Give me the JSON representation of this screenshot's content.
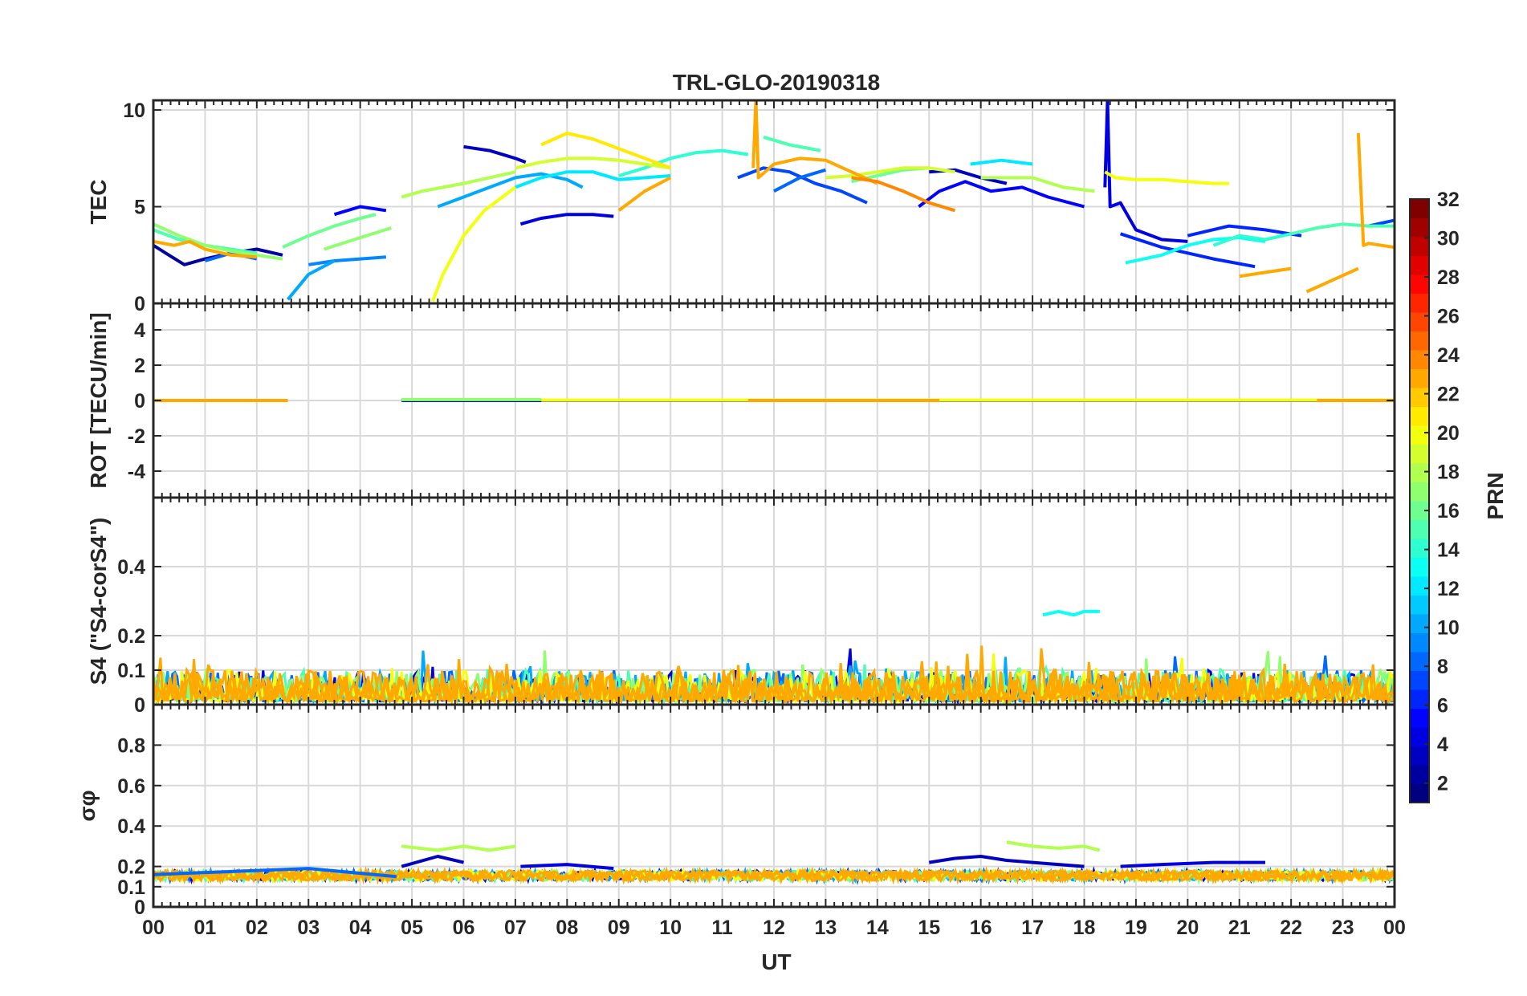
{
  "figure": {
    "title": "TRL-GLO-20190318",
    "xlabel": "UT",
    "colorbar_label": "PRN"
  },
  "chart_data": [
    {
      "type": "line",
      "panel": "tec",
      "ylabel": "TEC",
      "ylim": [
        0,
        10.5
      ],
      "yticks": [
        "0",
        "5",
        "10"
      ],
      "ytick_values": [
        0,
        5,
        10
      ],
      "xlim": [
        0,
        24
      ],
      "xticks": [
        "00",
        "01",
        "02",
        "03",
        "04",
        "05",
        "06",
        "07",
        "08",
        "09",
        "10",
        "11",
        "12",
        "13",
        "14",
        "15",
        "16",
        "17",
        "18",
        "19",
        "20",
        "21",
        "22",
        "23",
        "00"
      ],
      "grid": true,
      "series": [
        {
          "prn": 2,
          "x": [
            0.0,
            0.3,
            0.6,
            1.0,
            1.5,
            2.0,
            2.5
          ],
          "y": [
            3.0,
            2.5,
            2.0,
            2.3,
            2.6,
            2.8,
            2.5
          ]
        },
        {
          "prn": 3,
          "x": [
            6.0,
            6.5,
            7.0,
            7.2
          ],
          "y": [
            8.1,
            7.9,
            7.5,
            7.3
          ]
        },
        {
          "prn": 3,
          "x": [
            15.0,
            15.5,
            16.0,
            16.5
          ],
          "y": [
            6.8,
            6.9,
            6.5,
            6.2
          ]
        },
        {
          "prn": 4,
          "x": [
            7.1,
            7.5,
            8.0,
            8.5,
            8.9
          ],
          "y": [
            4.1,
            4.4,
            4.6,
            4.6,
            4.5
          ]
        },
        {
          "prn": 4,
          "x": [
            18.4,
            18.45,
            18.5,
            18.7,
            19.0,
            19.5,
            20.0
          ],
          "y": [
            6.0,
            10.5,
            5.0,
            5.2,
            3.8,
            3.3,
            3.2
          ]
        },
        {
          "prn": 5,
          "x": [
            3.5,
            4.0,
            4.5
          ],
          "y": [
            4.6,
            5.0,
            4.8
          ]
        },
        {
          "prn": 5,
          "x": [
            14.8,
            15.2,
            15.7,
            16.2,
            16.8,
            17.3,
            18.0
          ],
          "y": [
            5.0,
            5.8,
            6.3,
            5.8,
            6.0,
            5.5,
            5.0
          ]
        },
        {
          "prn": 6,
          "x": [
            18.7,
            19.5,
            20.5,
            21.3
          ],
          "y": [
            3.6,
            2.9,
            2.3,
            1.9
          ]
        },
        {
          "prn": 6,
          "x": [
            20.0,
            20.8,
            21.5,
            22.2
          ],
          "y": [
            3.5,
            4.0,
            3.8,
            3.5
          ]
        },
        {
          "prn": 7,
          "x": [
            11.3,
            11.8,
            12.3,
            12.8,
            13.3,
            13.8
          ],
          "y": [
            6.5,
            7.0,
            6.8,
            6.2,
            5.8,
            5.2
          ]
        },
        {
          "prn": 7,
          "x": [
            23.5,
            24.0
          ],
          "y": [
            4.0,
            4.3
          ]
        },
        {
          "prn": 8,
          "x": [
            1.0,
            1.5,
            2.0
          ],
          "y": [
            2.2,
            2.6,
            2.3
          ]
        },
        {
          "prn": 8,
          "x": [
            12.0,
            12.5,
            13.0
          ],
          "y": [
            5.8,
            6.5,
            6.9
          ]
        },
        {
          "prn": 9,
          "x": [
            3.0,
            3.5,
            4.0,
            4.5
          ],
          "y": [
            2.0,
            2.2,
            2.3,
            2.4
          ]
        },
        {
          "prn": 10,
          "x": [
            2.6,
            3.0,
            3.5
          ],
          "y": [
            0.2,
            1.5,
            2.2
          ]
        },
        {
          "prn": 10,
          "x": [
            5.5,
            6.0,
            6.5,
            7.0,
            7.5,
            8.0,
            8.3
          ],
          "y": [
            5.0,
            5.5,
            6.0,
            6.5,
            6.7,
            6.4,
            6.0
          ]
        },
        {
          "prn": 12,
          "x": [
            7.0,
            7.5,
            8.0,
            8.5,
            9.0,
            9.5,
            10.0
          ],
          "y": [
            6.0,
            6.5,
            6.8,
            6.8,
            6.4,
            6.5,
            6.6
          ]
        },
        {
          "prn": 12,
          "x": [
            15.8,
            16.4,
            17.0
          ],
          "y": [
            7.2,
            7.4,
            7.2
          ]
        },
        {
          "prn": 13,
          "x": [
            18.8,
            19.5,
            20.0,
            20.5,
            21.0,
            21.5
          ],
          "y": [
            2.1,
            2.5,
            3.0,
            3.3,
            3.4,
            3.2
          ]
        },
        {
          "prn": 14,
          "x": [
            9.0,
            9.5,
            10.0,
            10.5,
            11.0,
            11.5
          ],
          "y": [
            6.6,
            7.0,
            7.5,
            7.8,
            7.9,
            7.7
          ]
        },
        {
          "prn": 14,
          "x": [
            20.5,
            21.0,
            21.5,
            22.0
          ],
          "y": [
            3.0,
            3.5,
            3.3,
            3.6
          ]
        },
        {
          "prn": 15,
          "x": [
            0.0,
            0.5,
            1.0,
            1.5,
            2.0
          ],
          "y": [
            3.8,
            3.3,
            3.0,
            2.8,
            2.6
          ]
        },
        {
          "prn": 15,
          "x": [
            11.8,
            12.3,
            12.9
          ],
          "y": [
            8.6,
            8.2,
            7.9
          ]
        },
        {
          "prn": 15,
          "x": [
            22.0,
            22.5,
            23.0,
            23.5,
            24.0
          ],
          "y": [
            3.6,
            3.9,
            4.1,
            4.0,
            4.0
          ]
        },
        {
          "prn": 16,
          "x": [
            2.5,
            3.0,
            3.5,
            4.0,
            4.3
          ],
          "y": [
            2.9,
            3.5,
            4.0,
            4.4,
            4.6
          ]
        },
        {
          "prn": 16,
          "x": [
            13.5,
            14.0,
            14.5,
            15.0
          ],
          "y": [
            6.3,
            6.6,
            6.9,
            7.0
          ]
        },
        {
          "prn": 17,
          "x": [
            0.0,
            0.5,
            1.0,
            1.5,
            2.0,
            2.5
          ],
          "y": [
            4.1,
            3.5,
            3.0,
            2.7,
            2.5,
            2.3
          ]
        },
        {
          "prn": 17,
          "x": [
            3.3,
            4.0,
            4.6
          ],
          "y": [
            2.8,
            3.4,
            3.9
          ]
        },
        {
          "prn": 18,
          "x": [
            4.8,
            5.2,
            5.6,
            6.0,
            6.5,
            7.0
          ],
          "y": [
            5.5,
            5.8,
            6.0,
            6.2,
            6.5,
            6.8
          ]
        },
        {
          "prn": 18,
          "x": [
            16.0,
            17.0,
            17.6,
            18.2
          ],
          "y": [
            6.5,
            6.5,
            6.0,
            5.8
          ]
        },
        {
          "prn": 19,
          "x": [
            7.0,
            7.5,
            8.0,
            8.5,
            9.0,
            9.5,
            10.0
          ],
          "y": [
            7.0,
            7.3,
            7.5,
            7.5,
            7.4,
            7.2,
            7.0
          ]
        },
        {
          "prn": 19,
          "x": [
            13.0,
            13.5,
            14.0,
            14.5,
            15.0,
            15.5
          ],
          "y": [
            6.5,
            6.6,
            6.8,
            7.0,
            7.0,
            6.8
          ]
        },
        {
          "prn": 20,
          "x": [
            5.4,
            5.6,
            6.0,
            6.4,
            6.8,
            7.0
          ],
          "y": [
            0.1,
            1.5,
            3.5,
            4.8,
            5.6,
            6.0
          ]
        },
        {
          "prn": 20,
          "x": [
            18.4,
            18.6,
            19.0,
            19.5,
            20.0,
            20.5,
            20.8
          ],
          "y": [
            6.8,
            6.5,
            6.4,
            6.4,
            6.3,
            6.2,
            6.2
          ]
        },
        {
          "prn": 21,
          "x": [
            7.5,
            8.0,
            8.5,
            9.0,
            9.5,
            10.0
          ],
          "y": [
            8.2,
            8.8,
            8.5,
            8.0,
            7.5,
            7.0
          ]
        },
        {
          "prn": 23,
          "x": [
            0.0,
            0.4,
            0.7,
            1.0,
            1.5,
            2.0
          ],
          "y": [
            3.2,
            3.0,
            3.2,
            2.8,
            2.5,
            2.4
          ]
        },
        {
          "prn": 23,
          "x": [
            9.0,
            9.5,
            10.0
          ],
          "y": [
            4.8,
            5.8,
            6.5
          ]
        },
        {
          "prn": 23,
          "x": [
            11.6,
            11.65,
            11.7,
            12.0,
            12.5,
            13.0,
            13.5,
            14.0
          ],
          "y": [
            7.0,
            10.5,
            6.5,
            7.2,
            7.5,
            7.4,
            6.8,
            6.2
          ]
        },
        {
          "prn": 23,
          "x": [
            21.0,
            21.5,
            22.0
          ],
          "y": [
            1.4,
            1.6,
            1.8
          ]
        },
        {
          "prn": 23,
          "x": [
            22.3,
            22.8,
            23.3
          ],
          "y": [
            0.6,
            1.2,
            1.8
          ]
        },
        {
          "prn": 23,
          "x": [
            23.3,
            23.4,
            23.5,
            24.0
          ],
          "y": [
            8.8,
            3.0,
            3.1,
            2.9
          ]
        },
        {
          "prn": 24,
          "x": [
            13.5,
            14.0,
            14.5,
            15.0,
            15.5
          ],
          "y": [
            6.5,
            6.3,
            5.8,
            5.2,
            4.8
          ]
        }
      ]
    },
    {
      "type": "line",
      "panel": "rot",
      "ylabel": "ROT [TECU/min]",
      "ylim": [
        -5.5,
        5.5
      ],
      "yticks": [
        "-4",
        "-2",
        "0",
        "2",
        "4"
      ],
      "ytick_values": [
        -4,
        -2,
        0,
        2,
        4
      ],
      "grid": true,
      "series": [
        {
          "prn": 4,
          "x": [
            4.8,
            24.0
          ],
          "y": [
            0.0,
            0.0
          ]
        },
        {
          "prn": 17,
          "x": [
            4.8,
            7.5
          ],
          "y": [
            0.05,
            0.05
          ]
        },
        {
          "prn": 20,
          "x": [
            7.5,
            24.0
          ],
          "y": [
            0.02,
            0.02
          ]
        },
        {
          "prn": 23,
          "x": [
            0.0,
            2.6
          ],
          "y": [
            0.0,
            0.0
          ]
        },
        {
          "prn": 23,
          "x": [
            11.5,
            15.2
          ],
          "y": [
            0.0,
            0.0
          ]
        },
        {
          "prn": 23,
          "x": [
            22.5,
            24.0
          ],
          "y": [
            0.0,
            0.0
          ]
        }
      ]
    },
    {
      "type": "line",
      "panel": "s4",
      "ylabel": "S4 (\"S4-corS4\")",
      "ylim": [
        0,
        0.6
      ],
      "yticks": [
        "0",
        "0.1",
        "0.2",
        "0.4"
      ],
      "ytick_values": [
        0,
        0.1,
        0.2,
        0.4
      ],
      "grid": true,
      "series": [
        {
          "prn": 13,
          "x": [
            17.2,
            17.5,
            17.8,
            18.0,
            18.3
          ],
          "y": [
            0.26,
            0.27,
            0.26,
            0.27,
            0.27
          ]
        }
      ],
      "noise_band": {
        "from": 0.0,
        "to": 0.18,
        "description_values": "dense scintillation noise 0–0.1, spikes to ~0.18"
      }
    },
    {
      "type": "line",
      "panel": "sigma_phi",
      "ylabel": "σφ",
      "ylim": [
        0,
        1.0
      ],
      "yticks": [
        "0",
        "0.1",
        "0.2",
        "0.4",
        "0.6",
        "0.8"
      ],
      "ytick_values": [
        0,
        0.1,
        0.2,
        0.4,
        0.6,
        0.8
      ],
      "grid": true,
      "series": [
        {
          "prn": 18,
          "x": [
            4.8,
            5.5,
            6.0,
            6.5,
            7.0
          ],
          "y": [
            0.3,
            0.28,
            0.3,
            0.28,
            0.3
          ]
        },
        {
          "prn": 3,
          "x": [
            4.8,
            5.5,
            6.0
          ],
          "y": [
            0.2,
            0.25,
            0.22
          ]
        },
        {
          "prn": 4,
          "x": [
            7.1,
            8.0,
            8.9
          ],
          "y": [
            0.2,
            0.21,
            0.19
          ]
        },
        {
          "prn": 3,
          "x": [
            15.0,
            15.5,
            16.0,
            16.5,
            17.0,
            18.0
          ],
          "y": [
            0.22,
            0.24,
            0.25,
            0.23,
            0.22,
            0.2
          ]
        },
        {
          "prn": 18,
          "x": [
            16.5,
            17.0,
            17.5,
            18.0,
            18.3
          ],
          "y": [
            0.32,
            0.3,
            0.29,
            0.3,
            0.28
          ]
        },
        {
          "prn": 4,
          "x": [
            18.7,
            19.5,
            20.5,
            21.5
          ],
          "y": [
            0.2,
            0.21,
            0.22,
            0.22
          ]
        },
        {
          "prn": 8,
          "x": [
            0.0,
            3.0,
            4.7
          ],
          "y": [
            0.16,
            0.19,
            0.15
          ]
        }
      ],
      "noise_band": {
        "from": 0.1,
        "to": 0.18
      }
    }
  ],
  "colorbar": {
    "ticks": [
      "2",
      "4",
      "6",
      "8",
      "10",
      "12",
      "14",
      "16",
      "18",
      "20",
      "22",
      "24",
      "26",
      "28",
      "30",
      "32"
    ],
    "tick_values": [
      2,
      4,
      6,
      8,
      10,
      12,
      14,
      16,
      18,
      20,
      22,
      24,
      26,
      28,
      30,
      32
    ],
    "range": [
      1,
      32
    ],
    "colormap": "jet"
  }
}
